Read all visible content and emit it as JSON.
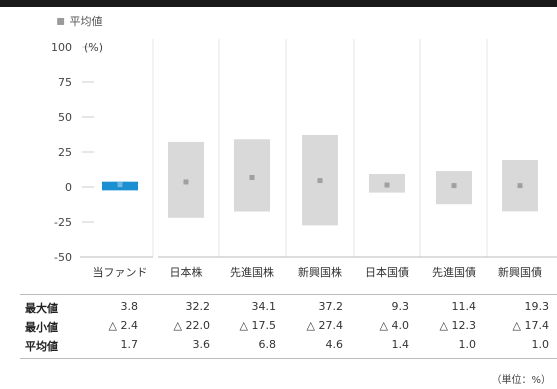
{
  "legend": {
    "label": "平均値"
  },
  "unit_note": "（単位：%）",
  "axis_unit": "(%)",
  "chart_data": {
    "type": "bar",
    "title": "",
    "ylabel": "(%)",
    "ylim": [
      -50,
      100
    ],
    "yticks": [
      100,
      75,
      50,
      25,
      0,
      -25,
      -50
    ],
    "categories": [
      "当ファンド",
      "日本株",
      "先進国株",
      "新興国株",
      "日本国債",
      "先進国債",
      "新興国債"
    ],
    "series": [
      {
        "name": "最大値",
        "values": [
          3.8,
          32.2,
          34.1,
          37.2,
          9.3,
          11.4,
          19.3
        ]
      },
      {
        "name": "最小値",
        "values": [
          -2.4,
          -22.0,
          -17.5,
          -27.4,
          -4.0,
          -12.3,
          -17.4
        ]
      },
      {
        "name": "平均値",
        "values": [
          1.7,
          3.6,
          6.8,
          4.6,
          1.4,
          1.0,
          1.0
        ]
      }
    ],
    "colors": {
      "fund": "#1a8fd1",
      "others": "#d9d9d9",
      "mean_marker": "#a0a0a0"
    }
  },
  "table": {
    "rows": [
      {
        "label": "最大値",
        "cells": [
          "3.8",
          "32.2",
          "34.1",
          "37.2",
          "9.3",
          "11.4",
          "19.3"
        ]
      },
      {
        "label": "最小値",
        "cells": [
          "△ 2.4",
          "△ 22.0",
          "△ 17.5",
          "△ 27.4",
          "△ 4.0",
          "△ 12.3",
          "△ 17.4"
        ]
      },
      {
        "label": "平均値",
        "cells": [
          "1.7",
          "3.6",
          "6.8",
          "4.6",
          "1.4",
          "1.0",
          "1.0"
        ]
      }
    ]
  }
}
